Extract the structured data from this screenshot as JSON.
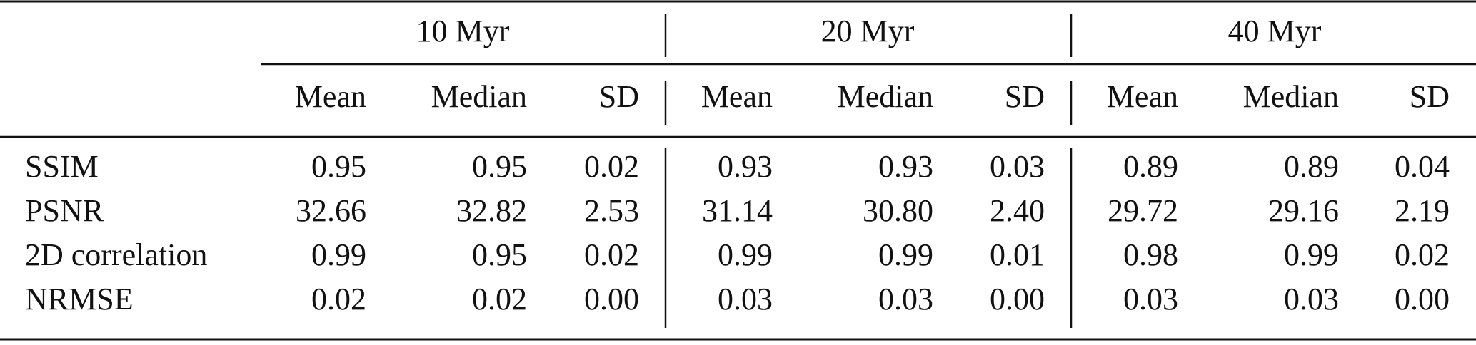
{
  "table": {
    "groups": [
      {
        "title": "10 Myr",
        "columns": [
          "Mean",
          "Median",
          "SD"
        ]
      },
      {
        "title": "20 Myr",
        "columns": [
          "Mean",
          "Median",
          "SD"
        ]
      },
      {
        "title": "40 Myr",
        "columns": [
          "Mean",
          "Median",
          "SD"
        ]
      }
    ],
    "rows": [
      {
        "label": "SSIM",
        "cells": [
          "0.95",
          "0.95",
          "0.02",
          "0.93",
          "0.93",
          "0.03",
          "0.89",
          "0.89",
          "0.04"
        ]
      },
      {
        "label": "PSNR",
        "cells": [
          "32.66",
          "32.82",
          "2.53",
          "31.14",
          "30.80",
          "2.40",
          "29.72",
          "29.16",
          "2.19"
        ]
      },
      {
        "label": "2D correlation",
        "cells": [
          "0.99",
          "0.95",
          "0.02",
          "0.99",
          "0.99",
          "0.01",
          "0.98",
          "0.99",
          "0.02"
        ]
      },
      {
        "label": "NRMSE",
        "cells": [
          "0.02",
          "0.02",
          "0.00",
          "0.03",
          "0.03",
          "0.00",
          "0.03",
          "0.03",
          "0.00"
        ]
      }
    ]
  }
}
